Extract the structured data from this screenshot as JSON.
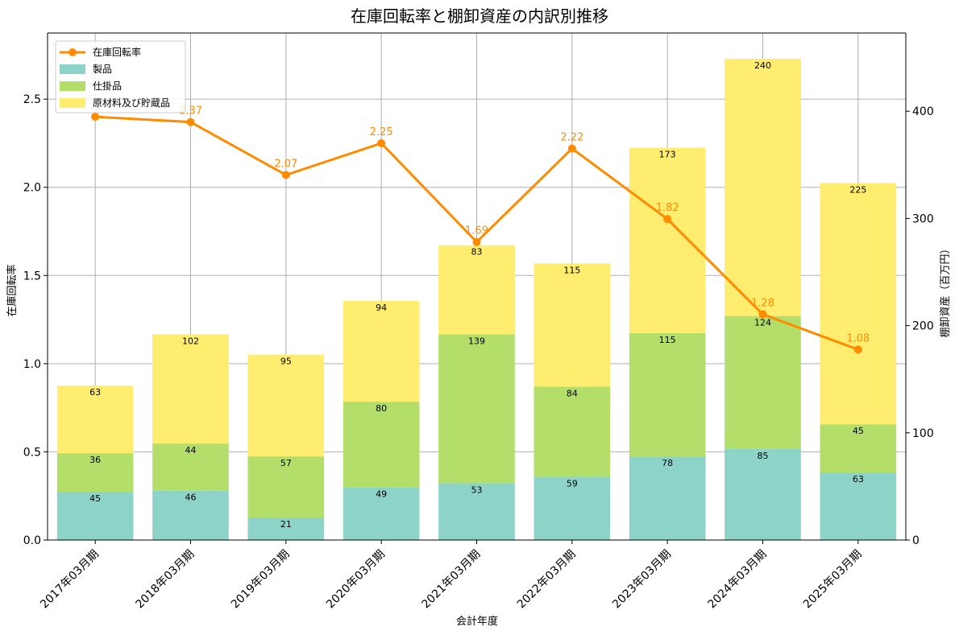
{
  "chart_data": {
    "type": "bar+line",
    "title": "在庫回転率と棚卸資産の内訳別推移",
    "xlabel": "会計年度",
    "ylabel_left": "在庫回転率",
    "ylabel_right": "棚卸資産（百万円）",
    "ylim_left": [
      0,
      2.875
    ],
    "ylim_right": [
      0,
      473
    ],
    "yticks_left": [
      "0.0",
      "0.5",
      "1.0",
      "1.5",
      "2.0",
      "2.5"
    ],
    "yticks_right": [
      "0",
      "100",
      "200",
      "300",
      "400"
    ],
    "categories": [
      "2017年03月期",
      "2018年03月期",
      "2019年03月期",
      "2020年03月期",
      "2021年03月期",
      "2022年03月期",
      "2023年03月期",
      "2024年03月期",
      "2025年03月期"
    ],
    "series": [
      {
        "name": "製品",
        "kind": "bar",
        "color": "#8dd3c7",
        "values": [
          45,
          46,
          21,
          49,
          53,
          59,
          78,
          85,
          63
        ],
        "labels": [
          "45",
          "46",
          "21",
          "49",
          "53",
          "59",
          "78",
          "85",
          "63"
        ]
      },
      {
        "name": "仕掛品",
        "kind": "bar",
        "color": "#b3de69",
        "values": [
          36,
          44,
          57,
          80,
          139,
          84,
          115,
          124,
          45
        ],
        "labels": [
          "36",
          "44",
          "57",
          "80",
          "139",
          "84",
          "115",
          "124",
          "45"
        ]
      },
      {
        "name": "原材料及び貯蔵品",
        "kind": "bar",
        "color": "#ffed6f",
        "values": [
          63,
          102,
          95,
          94,
          83,
          115,
          173,
          240,
          225
        ],
        "labels": [
          "63",
          "102",
          "95",
          "94",
          "83",
          "115",
          "173",
          "240",
          "225"
        ]
      },
      {
        "name": "在庫回転率",
        "kind": "line",
        "color": "#ff8c00",
        "values": [
          2.4,
          2.37,
          2.07,
          2.25,
          1.69,
          2.22,
          1.82,
          1.28,
          1.08
        ],
        "labels": [
          "",
          "2.37",
          "2.07",
          "2.25",
          "1.69",
          "2.22",
          "1.82",
          "1.28",
          "1.08"
        ]
      }
    ],
    "legend": {
      "position": "top-left",
      "items": [
        "在庫回転率",
        "製品",
        "仕掛品",
        "原材料及び貯蔵品"
      ]
    },
    "grid": true
  }
}
